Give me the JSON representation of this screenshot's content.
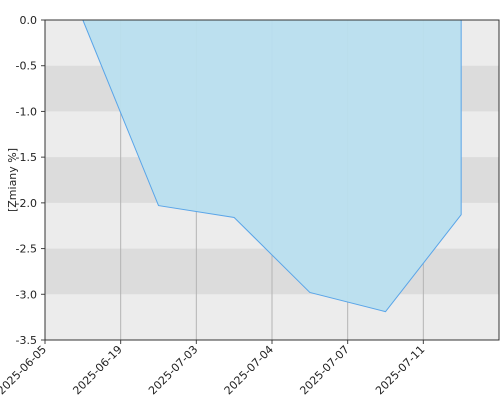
{
  "chart_data": {
    "type": "area",
    "y_label": "[Zmiany %]",
    "categories": [
      "2025-06-05",
      "2025-06-19",
      "2025-07-03",
      "2025-07-04",
      "2025-07-07",
      "2025-07-11"
    ],
    "values": [
      0,
      -2.03,
      -2.16,
      -2.98,
      -3.19,
      -2.13
    ],
    "color": "#5aa5e8",
    "fill": "#b9dfef",
    "ylim": [
      -3.5,
      0
    ],
    "yticks": [
      {
        "value": 0,
        "label": "0.0"
      },
      -0.5,
      {
        "value": -1,
        "label": "-1.0"
      },
      -1.5,
      {
        "value": -2,
        "label": "-2.0"
      },
      -2.5,
      {
        "value": -3,
        "label": "-3.0"
      },
      -3.5
    ],
    "grid": true
  }
}
